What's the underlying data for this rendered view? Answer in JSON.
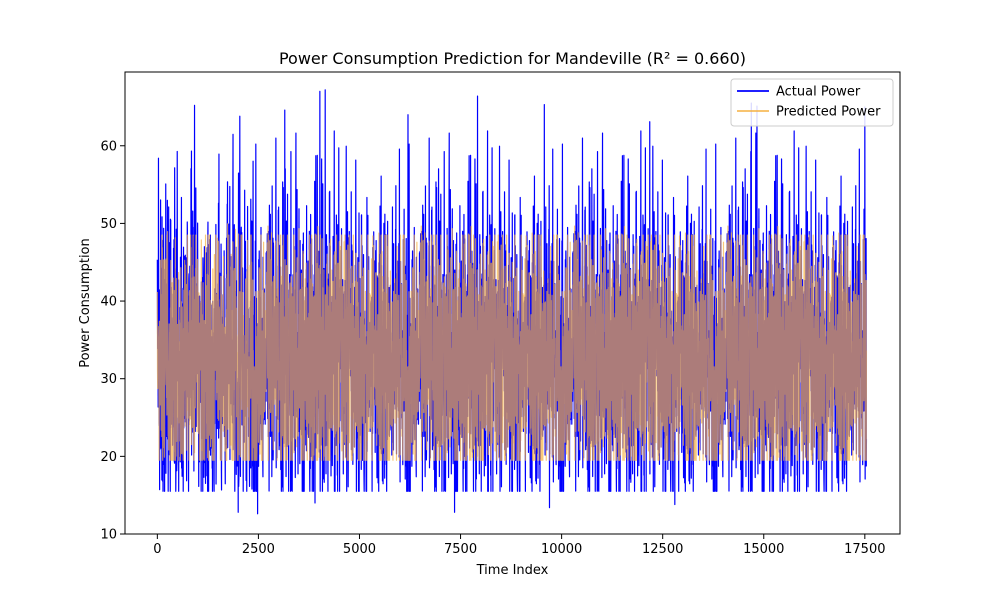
{
  "chart_data": {
    "type": "line",
    "title": "Power Consumption Prediction for Mandeville (R² = 0.660)",
    "xlabel": "Time Index",
    "ylabel": "Power Consumption",
    "xlim": [
      -800,
      18370
    ],
    "ylim": [
      10,
      69.5
    ],
    "x_ticks": [
      0,
      2500,
      5000,
      7500,
      10000,
      12500,
      15000,
      17500
    ],
    "y_ticks": [
      10,
      20,
      30,
      40,
      50,
      60
    ],
    "n_points": 17544,
    "grid": false,
    "legend_position": "top-right",
    "series": [
      {
        "name": "Actual Power",
        "color": "#0000ff",
        "typical_range": [
          17,
          54
        ],
        "overall_range": [
          12.5,
          67.2
        ],
        "peaks": [
          {
            "x": 920,
            "y": 65.2
          },
          {
            "x": 2040,
            "y": 63.8
          },
          {
            "x": 3150,
            "y": 64.6
          },
          {
            "x": 4020,
            "y": 67.0
          },
          {
            "x": 4150,
            "y": 67.2
          },
          {
            "x": 6200,
            "y": 64.0
          },
          {
            "x": 7920,
            "y": 66.4
          },
          {
            "x": 9570,
            "y": 65.3
          },
          {
            "x": 12180,
            "y": 63.1
          },
          {
            "x": 14690,
            "y": 65.5
          },
          {
            "x": 14830,
            "y": 65.1
          },
          {
            "x": 17500,
            "y": 65.0
          }
        ],
        "troughs": [
          {
            "x": 2000,
            "y": 12.8
          },
          {
            "x": 2480,
            "y": 12.6
          },
          {
            "x": 7350,
            "y": 12.8
          },
          {
            "x": 9700,
            "y": 13.4
          },
          {
            "x": 12800,
            "y": 13.8
          },
          {
            "x": 3900,
            "y": 14.0
          }
        ]
      },
      {
        "name": "Predicted Power",
        "color": "#f5b041",
        "typical_range": [
          19.5,
          46
        ],
        "overall_range": [
          19.3,
          50
        ]
      }
    ]
  }
}
